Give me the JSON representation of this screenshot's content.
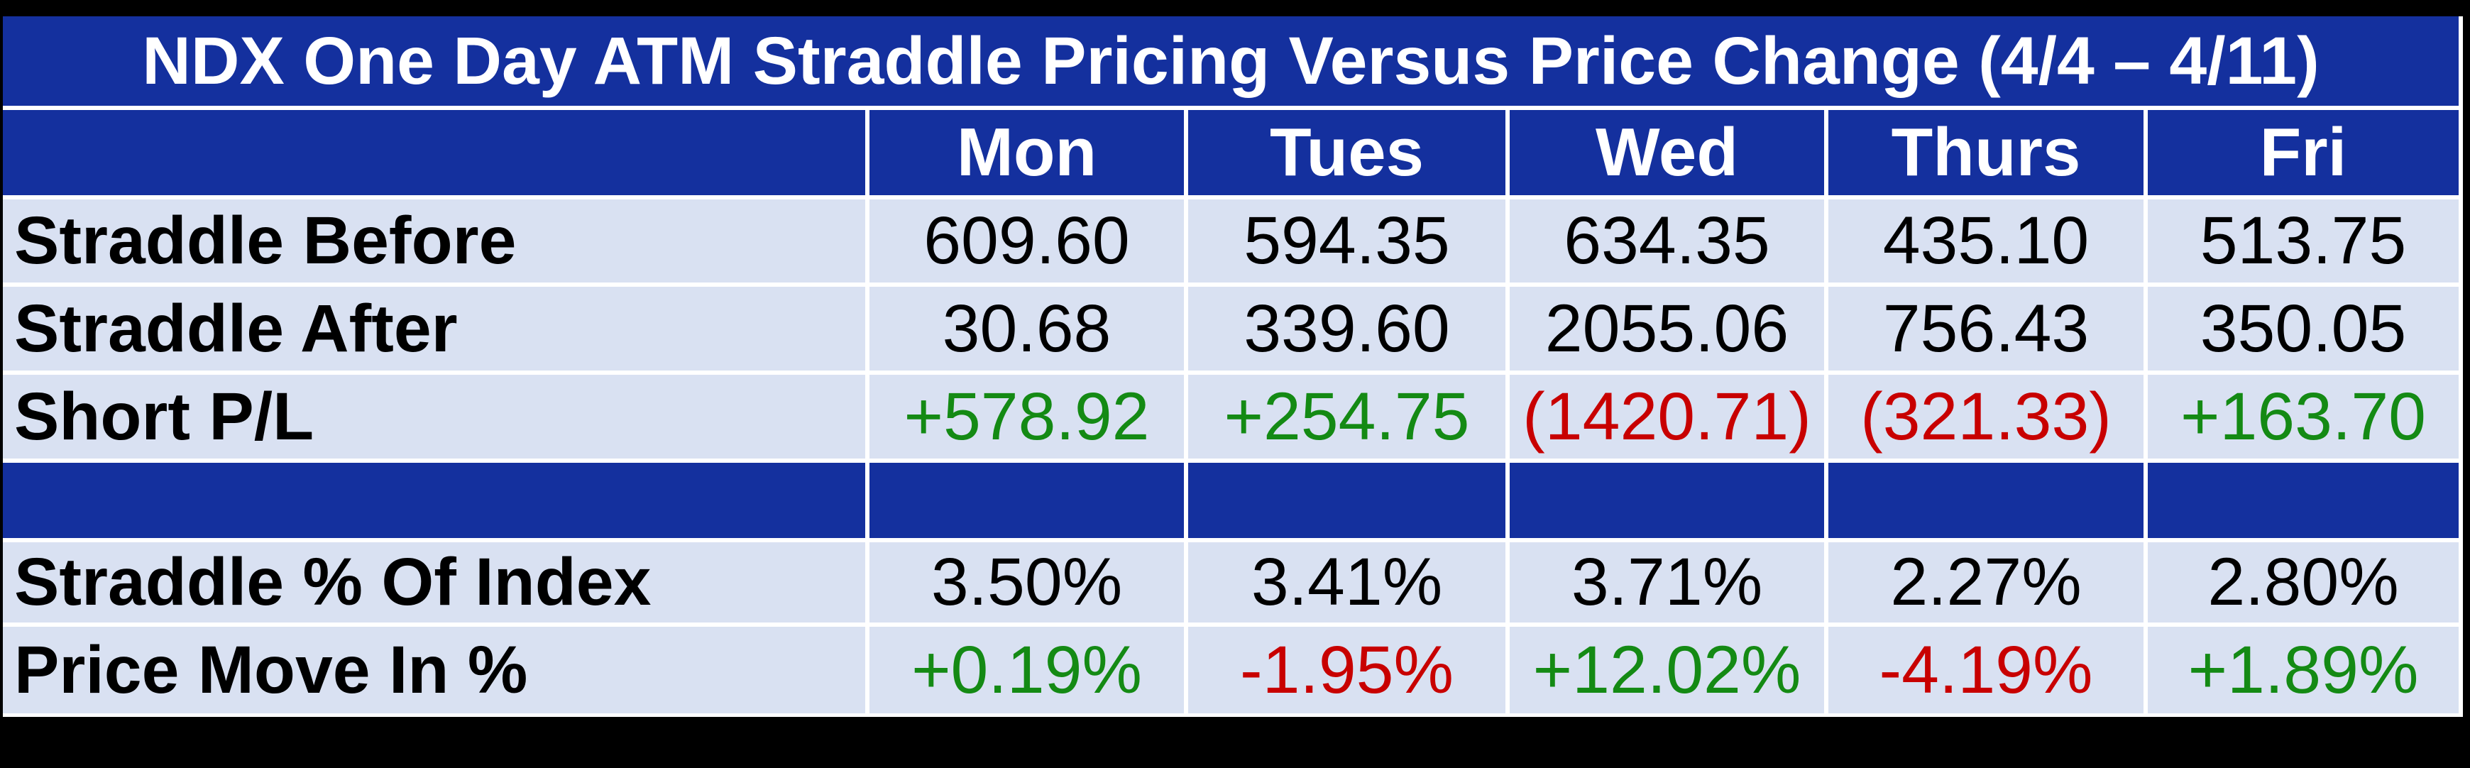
{
  "table": {
    "title": "NDX One Day ATM Straddle Pricing Versus Price Change (4/4 – 4/11)",
    "columns": [
      "Mon",
      "Tues",
      "Wed",
      "Thurs",
      "Fri"
    ],
    "rows": [
      {
        "label": "Straddle Before",
        "values": [
          "609.60",
          "594.35",
          "634.35",
          "435.10",
          "513.75"
        ],
        "colors": [
          "black",
          "black",
          "black",
          "black",
          "black"
        ]
      },
      {
        "label": "Straddle After",
        "values": [
          "30.68",
          "339.60",
          "2055.06",
          "756.43",
          "350.05"
        ],
        "colors": [
          "black",
          "black",
          "black",
          "black",
          "black"
        ]
      },
      {
        "label": "Short P/L",
        "values": [
          "+578.92",
          "+254.75",
          "(1420.71)",
          "(321.33)",
          "+163.70"
        ],
        "colors": [
          "green",
          "green",
          "red",
          "red",
          "green"
        ]
      },
      {
        "label": "Straddle % Of Index",
        "values": [
          "3.50%",
          "3.41%",
          "3.71%",
          "2.27%",
          "2.80%"
        ],
        "colors": [
          "black",
          "black",
          "black",
          "black",
          "black"
        ]
      },
      {
        "label": "Price Move In %",
        "values": [
          "+0.19%",
          "-1.95%",
          "+12.02%",
          "-4.19%",
          "+1.89%"
        ],
        "colors": [
          "green",
          "red",
          "green",
          "red",
          "green"
        ]
      }
    ],
    "colors": {
      "header_bg": "#14309E",
      "row_bg": "#D9E1F2",
      "positive_text": "#148A14",
      "negative_text": "#C80000",
      "neutral_text": "#000000",
      "header_text": "#FFFFFF",
      "frame": "#000000",
      "gridline": "#FFFFFF"
    }
  },
  "chart_data": {
    "type": "table",
    "title": "NDX One Day ATM Straddle Pricing Versus Price Change (4/4 – 4/11)",
    "columns": [
      "",
      "Mon",
      "Tues",
      "Wed",
      "Thurs",
      "Fri"
    ],
    "rows": [
      [
        "Straddle Before",
        609.6,
        594.35,
        634.35,
        435.1,
        513.75
      ],
      [
        "Straddle After",
        30.68,
        339.6,
        2055.06,
        756.43,
        350.05
      ],
      [
        "Short P/L",
        578.92,
        254.75,
        -1420.71,
        -321.33,
        163.7
      ],
      [
        "Straddle % Of Index",
        "3.50%",
        "3.41%",
        "3.71%",
        "2.27%",
        "2.80%"
      ],
      [
        "Price Move In %",
        "+0.19%",
        "-1.95%",
        "+12.02%",
        "-4.19%",
        "+1.89%"
      ]
    ],
    "notes_layout": "Negative Short P/L values shown in red parentheses; positive values green with + prefix; blank dark-blue spacer row between Short P/L and Straddle % Of Index"
  }
}
